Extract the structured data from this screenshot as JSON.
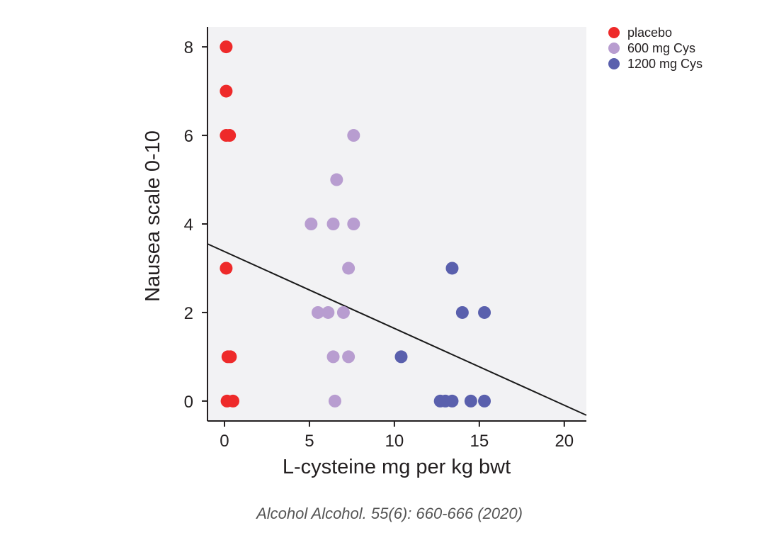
{
  "chart_data": {
    "type": "scatter",
    "xlabel": "L-cysteine mg per kg bwt",
    "ylabel": "Nausea scale 0-10",
    "xlim": [
      -1,
      21.3
    ],
    "ylim": [
      -0.45,
      8.45
    ],
    "xticks": [
      0,
      5,
      10,
      15,
      20
    ],
    "yticks": [
      0,
      2,
      4,
      6,
      8
    ],
    "grid": false,
    "plot_background": "#f2f2f4",
    "legend_position": "top-right, outside plot",
    "series": [
      {
        "name": "placebo",
        "color": "#ee2a2a",
        "points": [
          [
            0.1,
            8
          ],
          [
            0.1,
            7
          ],
          [
            0.1,
            6
          ],
          [
            0.3,
            6
          ],
          [
            0.1,
            3
          ],
          [
            0.2,
            1
          ],
          [
            0.35,
            1
          ],
          [
            0.15,
            0
          ],
          [
            0.5,
            0
          ]
        ]
      },
      {
        "name": "600 mg Cys",
        "color": "#b89dd0",
        "points": [
          [
            7.6,
            6
          ],
          [
            6.6,
            5
          ],
          [
            5.1,
            4
          ],
          [
            6.4,
            4
          ],
          [
            7.6,
            4
          ],
          [
            7.3,
            3
          ],
          [
            5.5,
            2
          ],
          [
            6.1,
            2
          ],
          [
            7.0,
            2
          ],
          [
            6.4,
            1
          ],
          [
            7.3,
            1
          ],
          [
            6.5,
            0
          ]
        ]
      },
      {
        "name": "1200 mg Cys",
        "color": "#5a60ad",
        "points": [
          [
            13.4,
            3
          ],
          [
            14.0,
            2
          ],
          [
            15.3,
            2
          ],
          [
            10.4,
            1
          ],
          [
            12.7,
            0
          ],
          [
            13.0,
            0
          ],
          [
            13.4,
            0
          ],
          [
            14.5,
            0
          ],
          [
            15.3,
            0
          ]
        ]
      }
    ],
    "regression_line": {
      "x": [
        -1,
        21.3
      ],
      "y": [
        3.55,
        -0.32
      ],
      "color": "#1a1a1a"
    }
  },
  "citation": "Alcohol Alcohol. 55(6): 660-666 (2020)"
}
